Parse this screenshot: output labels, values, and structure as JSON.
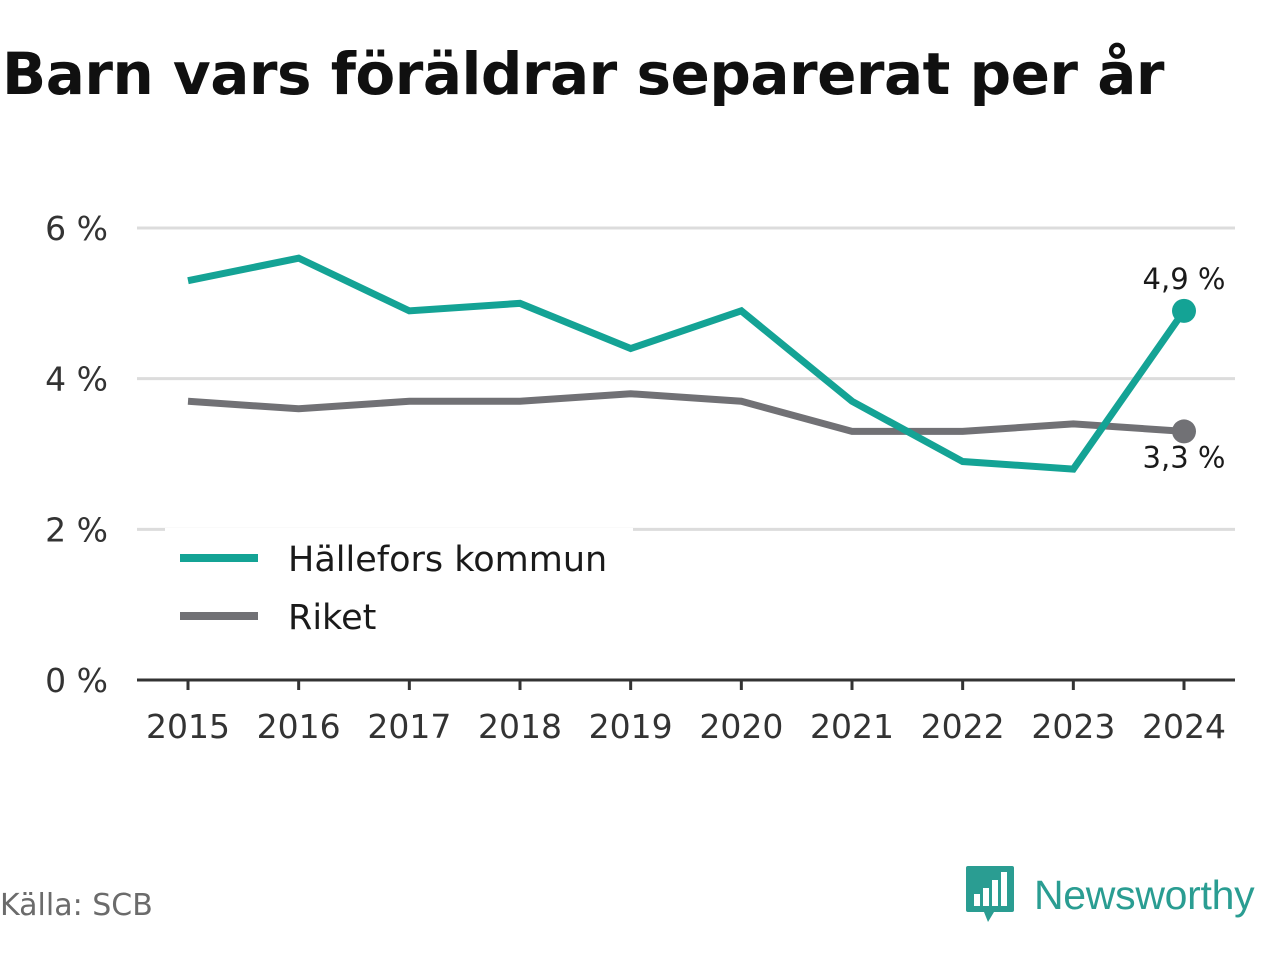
{
  "title": "Barn vars föräldrar separerat per år",
  "source": "Källa: SCB",
  "brand": {
    "name": "Newsworthy",
    "logo_icon": "bar-chart-speech-bubble-icon",
    "color": "#2a9d92"
  },
  "chart_data": {
    "type": "line",
    "title": "Barn vars föräldrar separerat per år",
    "x": [
      "2015",
      "2016",
      "2017",
      "2018",
      "2019",
      "2020",
      "2021",
      "2022",
      "2023",
      "2024"
    ],
    "ylim": [
      0,
      6
    ],
    "y_ticks": [
      0,
      2,
      4,
      6
    ],
    "y_tick_labels": [
      "0 %",
      "2 %",
      "4 %",
      "6 %"
    ],
    "grid": true,
    "legend_position": "bottom-left",
    "series": [
      {
        "name": "Hällefors kommun",
        "color": "#14a395",
        "values": [
          5.3,
          5.6,
          4.9,
          5.0,
          4.4,
          4.9,
          3.7,
          2.9,
          2.8,
          4.9
        ],
        "end_label": "4,9 %"
      },
      {
        "name": "Riket",
        "color": "#717175",
        "values": [
          3.7,
          3.6,
          3.7,
          3.7,
          3.8,
          3.7,
          3.3,
          3.3,
          3.4,
          3.3
        ],
        "end_label": "3,3 %"
      }
    ]
  }
}
